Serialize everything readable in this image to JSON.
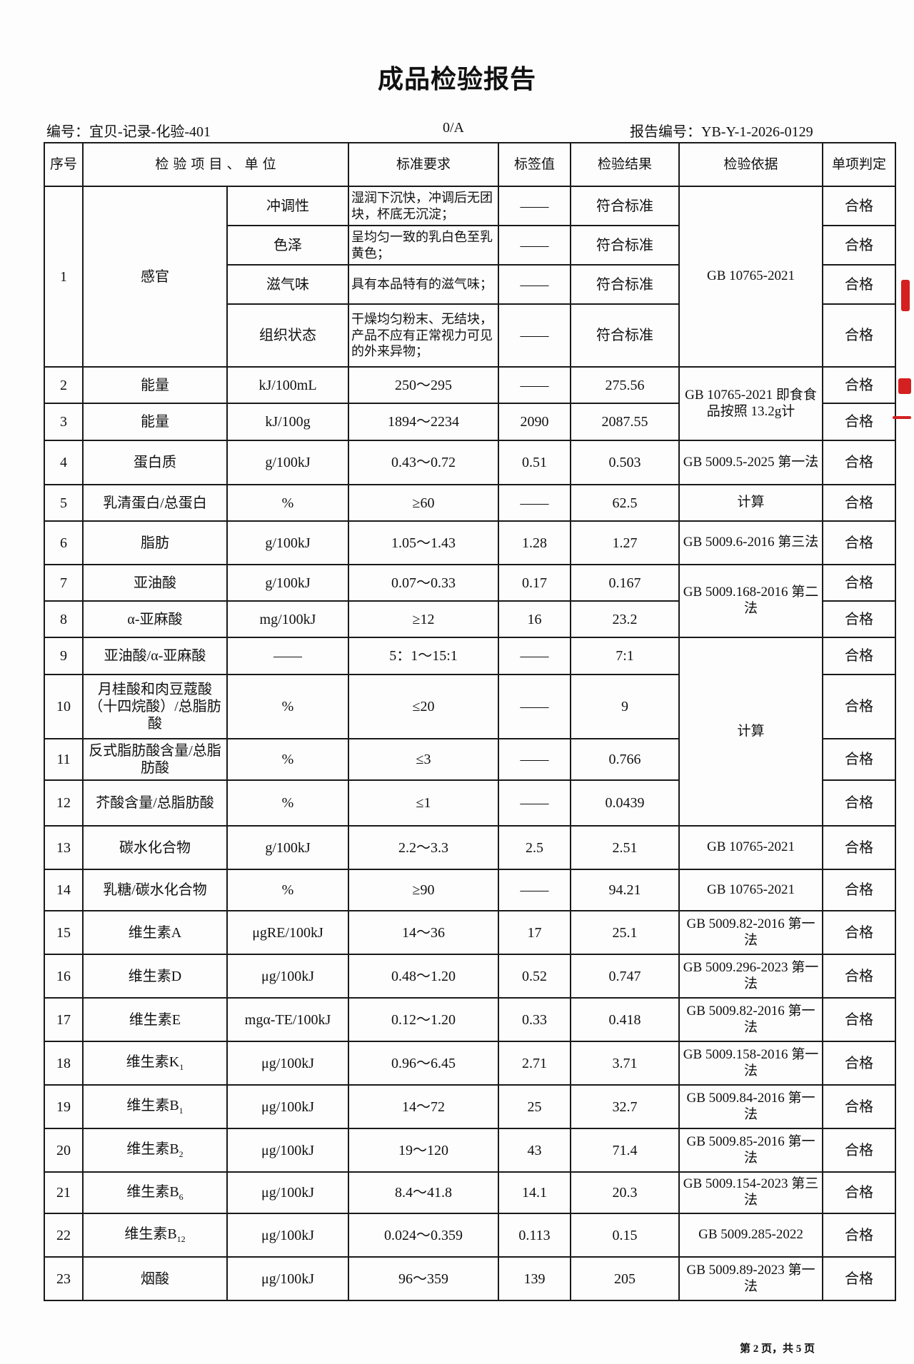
{
  "title": "成品检验报告",
  "header": {
    "record_code": "编号：宜贝-记录-化验-401",
    "version": "0/A",
    "report_no": "报告编号：YB-Y-1-2026-0129"
  },
  "columns": [
    "序号",
    "检 验 项 目 、 单 位",
    "标准要求",
    "标签值",
    "检验结果",
    "检验依据",
    "单项判定"
  ],
  "sensory": {
    "no": "1",
    "item": "感官",
    "basis": "GB 10765-2021",
    "subs": [
      {
        "name": "冲调性",
        "std": "湿润下沉快，冲调后无团块，杯底无沉淀；",
        "label": "——",
        "result": "符合标准",
        "verdict": "合格"
      },
      {
        "name": "色泽",
        "std": "呈均匀一致的乳白色至乳黄色；",
        "label": "——",
        "result": "符合标准",
        "verdict": "合格"
      },
      {
        "name": "滋气味",
        "std": "具有本品特有的滋气味；",
        "label": "——",
        "result": "符合标准",
        "verdict": "合格"
      },
      {
        "name": "组织状态",
        "std": "干燥均匀粉末、无结块，产品不应有正常视力可见的外来异物；",
        "label": "——",
        "result": "符合标准",
        "verdict": "合格"
      }
    ]
  },
  "rows": [
    {
      "no": "2",
      "item": "能量",
      "unit": "kJ/100mL",
      "std": "250～295",
      "label": "——",
      "result": "275.56",
      "basis": "GB 10765-2021 即食食品按照 13.2g计",
      "basis_span": 2,
      "verdict": "合格"
    },
    {
      "no": "3",
      "item": "能量",
      "unit": "kJ/100g",
      "std": "1894～2234",
      "label": "2090",
      "result": "2087.55",
      "verdict": "合格"
    },
    {
      "no": "4",
      "item": "蛋白质",
      "unit": "g/100kJ",
      "std": "0.43～0.72",
      "label": "0.51",
      "result": "0.503",
      "basis": "GB 5009.5-2025 第一法",
      "basis_span": 1,
      "verdict": "合格"
    },
    {
      "no": "5",
      "item": "乳清蛋白/总蛋白",
      "unit": "%",
      "std": "≥60",
      "label": "——",
      "result": "62.5",
      "basis": "计算",
      "basis_span": 1,
      "verdict": "合格"
    },
    {
      "no": "6",
      "item": "脂肪",
      "unit": "g/100kJ",
      "std": "1.05～1.43",
      "label": "1.28",
      "result": "1.27",
      "basis": "GB 5009.6-2016 第三法",
      "basis_span": 1,
      "verdict": "合格"
    },
    {
      "no": "7",
      "item": "亚油酸",
      "unit": "g/100kJ",
      "std": "0.07～0.33",
      "label": "0.17",
      "result": "0.167",
      "basis": "GB 5009.168-2016 第二法",
      "basis_span": 2,
      "verdict": "合格"
    },
    {
      "no": "8",
      "item": "α-亚麻酸",
      "unit": "mg/100kJ",
      "std": "≥12",
      "label": "16",
      "result": "23.2",
      "verdict": "合格"
    },
    {
      "no": "9",
      "item": "亚油酸/α-亚麻酸",
      "unit": "——",
      "std": "5：1～15:1",
      "label": "——",
      "result": "7:1",
      "basis": "计算",
      "basis_span": 4,
      "verdict": "合格"
    },
    {
      "no": "10",
      "item": "月桂酸和肉豆蔻酸（十四烷酸）/总脂肪酸",
      "unit": "%",
      "std": "≤20",
      "label": "——",
      "result": "9",
      "verdict": "合格"
    },
    {
      "no": "11",
      "item": "反式脂肪酸含量/总脂肪酸",
      "unit": "%",
      "std": "≤3",
      "label": "——",
      "result": "0.766",
      "verdict": "合格"
    },
    {
      "no": "12",
      "item": "芥酸含量/总脂肪酸",
      "unit": "%",
      "std": "≤1",
      "label": "——",
      "result": "0.0439",
      "verdict": "合格"
    },
    {
      "no": "13",
      "item": "碳水化合物",
      "unit": "g/100kJ",
      "std": "2.2～3.3",
      "label": "2.5",
      "result": "2.51",
      "basis": "GB 10765-2021",
      "basis_span": 1,
      "verdict": "合格"
    },
    {
      "no": "14",
      "item": "乳糖/碳水化合物",
      "unit": "%",
      "std": "≥90",
      "label": "——",
      "result": "94.21",
      "basis": "GB 10765-2021",
      "basis_span": 1,
      "verdict": "合格"
    },
    {
      "no": "15",
      "item": "维生素A",
      "unit": "μgRE/100kJ",
      "std": "14～36",
      "label": "17",
      "result": "25.1",
      "basis": "GB 5009.82-2016 第一法",
      "basis_span": 1,
      "verdict": "合格"
    },
    {
      "no": "16",
      "item": "维生素D",
      "unit": "μg/100kJ",
      "std": "0.48～1.20",
      "label": "0.52",
      "result": "0.747",
      "basis": "GB 5009.296-2023 第一法",
      "basis_span": 1,
      "verdict": "合格"
    },
    {
      "no": "17",
      "item": "维生素E",
      "unit": "mgα-TE/100kJ",
      "std": "0.12～1.20",
      "label": "0.33",
      "result": "0.418",
      "basis": "GB 5009.82-2016 第一法",
      "basis_span": 1,
      "verdict": "合格"
    },
    {
      "no": "18",
      "item": "维生素K",
      "sub": "1",
      "unit": "μg/100kJ",
      "std": "0.96～6.45",
      "label": "2.71",
      "result": "3.71",
      "basis": "GB 5009.158-2016 第一法",
      "basis_span": 1,
      "verdict": "合格"
    },
    {
      "no": "19",
      "item": "维生素B",
      "sub": "1",
      "unit": "μg/100kJ",
      "std": "14～72",
      "label": "25",
      "result": "32.7",
      "basis": "GB 5009.84-2016 第一法",
      "basis_span": 1,
      "verdict": "合格"
    },
    {
      "no": "20",
      "item": "维生素B",
      "sub": "2",
      "unit": "μg/100kJ",
      "std": "19～120",
      "label": "43",
      "result": "71.4",
      "basis": "GB 5009.85-2016 第一法",
      "basis_span": 1,
      "verdict": "合格"
    },
    {
      "no": "21",
      "item": "维生素B",
      "sub": "6",
      "unit": "μg/100kJ",
      "std": "8.4～41.8",
      "label": "14.1",
      "result": "20.3",
      "basis": "GB 5009.154-2023 第三法",
      "basis_span": 1,
      "verdict": "合格"
    },
    {
      "no": "22",
      "item": "维生素B",
      "sub": "12",
      "unit": "μg/100kJ",
      "std": "0.024～0.359",
      "label": "0.113",
      "result": "0.15",
      "basis": "GB 5009.285-2022",
      "basis_span": 1,
      "verdict": "合格"
    },
    {
      "no": "23",
      "item": "烟酸",
      "unit": "μg/100kJ",
      "std": "96～359",
      "label": "139",
      "result": "205",
      "basis": "GB 5009.89-2023 第一法",
      "basis_span": 1,
      "verdict": "合格"
    }
  ],
  "footer": "第 2 页，共 5 页",
  "colors": {
    "stamp": "#d42020",
    "ink": "#111111"
  }
}
